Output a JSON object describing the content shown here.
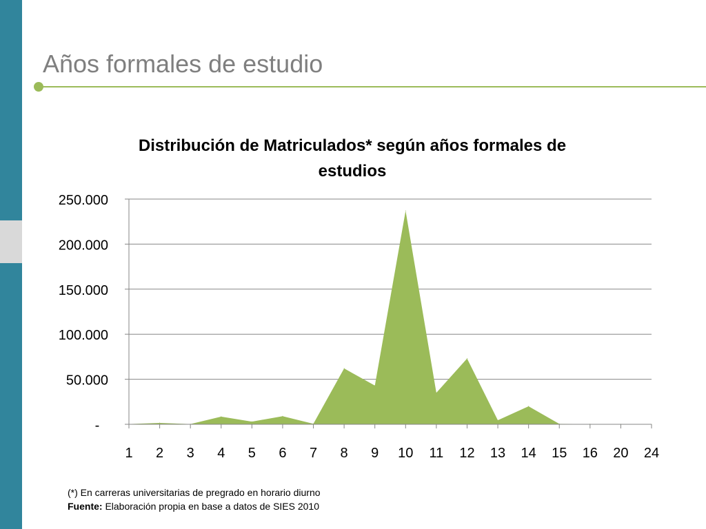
{
  "slide": {
    "title": "Años formales de estudio"
  },
  "colors": {
    "sidebar": "#31859c",
    "accent": "#9bbb59",
    "title": "#7f7f7f",
    "area": "#9bbb59",
    "grid": "#868686"
  },
  "chart_data": {
    "type": "area",
    "title": "Distribución de Matriculados* según años formales de estudios",
    "title_lines": [
      "Distribución de Matriculados* según años formales de",
      "estudios"
    ],
    "categories": [
      "1",
      "2",
      "3",
      "4",
      "5",
      "6",
      "7",
      "8",
      "9",
      "10",
      "11",
      "12",
      "13",
      "14",
      "15",
      "16",
      "20",
      "24"
    ],
    "values": [
      300,
      1500,
      300,
      8500,
      3000,
      9000,
      600,
      62000,
      43000,
      237000,
      35000,
      73000,
      4500,
      20000,
      500,
      300,
      200,
      0
    ],
    "ylim": [
      0,
      250000
    ],
    "yticks": [
      0,
      50000,
      100000,
      150000,
      200000,
      250000
    ],
    "ytick_labels": [
      "-",
      "50.000",
      "100.000",
      "150.000",
      "200.000",
      "250.000"
    ],
    "xlabel": "",
    "ylabel": "",
    "grid": true,
    "legend": "none"
  },
  "footnote": {
    "note": "(*) En carreras  universitarias de pregrado en horario diurno",
    "source_label": "Fuente:",
    "source_text": " Elaboración propia en base a datos de SIES 2010"
  }
}
